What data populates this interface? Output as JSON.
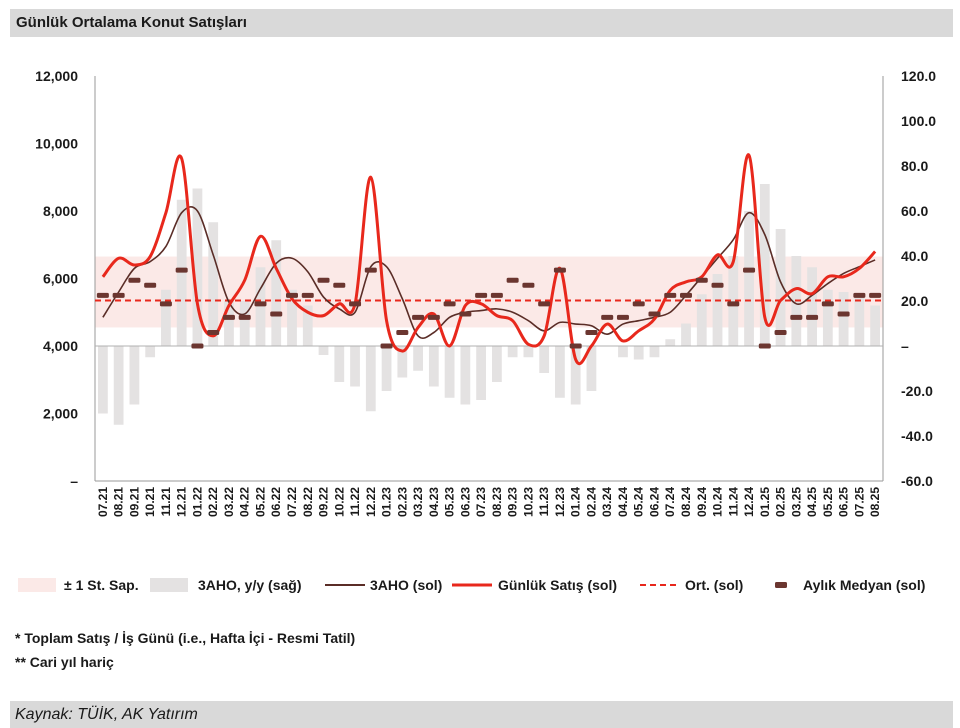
{
  "title": "Günlük Ortalama Konut Satışları",
  "notes": {
    "note1": "* Toplam Satış / İş Günü (i.e., Hafta İçi - Resmi Tatil)",
    "note2": "** Cari yıl hariç"
  },
  "source": "Kaynak: TÜİK, AK Yatırım",
  "colors": {
    "band": "#fbe9e7",
    "bars": "#e4e2e2",
    "aho": "#5a2d27",
    "daily": "#e8281c",
    "avg": "#e8281c",
    "median": "#6b3630"
  },
  "chart_data": {
    "type": "line",
    "x": [
      "07.21",
      "08.21",
      "09.21",
      "10.21",
      "11.21",
      "12.21",
      "01.22",
      "02.22",
      "03.22",
      "04.22",
      "05.22",
      "06.22",
      "07.22",
      "08.22",
      "09.22",
      "10.22",
      "11.22",
      "12.22",
      "01.23",
      "02.23",
      "03.23",
      "04.23",
      "05.23",
      "06.23",
      "07.23",
      "08.23",
      "09.23",
      "10.23",
      "11.23",
      "12.23",
      "01.24",
      "02.24",
      "03.24",
      "04.24",
      "05.24",
      "06.24",
      "07.24",
      "08.24",
      "09.24",
      "10.24",
      "11.24",
      "12.24",
      "01.25",
      "02.25",
      "03.25",
      "04.25",
      "05.25",
      "06.25",
      "07.25",
      "08.25"
    ],
    "y_left": {
      "min": 0,
      "max": 12000,
      "ticks": [
        "–",
        "2,000",
        "4,000",
        "6,000",
        "8,000",
        "10,000",
        "12,000"
      ]
    },
    "y_right": {
      "min": -60,
      "max": 120,
      "ticks": [
        "-60.0",
        "-40.0",
        "-20.0",
        "–",
        "20.0",
        "40.0",
        "60.0",
        "80.0",
        "100.0",
        "120.0"
      ]
    },
    "band": {
      "lower": 4550,
      "upper": 6650
    },
    "average": 5350,
    "series": [
      {
        "name": "3AHO, y/y (sağ)",
        "type": "bar",
        "axis": "right",
        "values": [
          -30,
          -35,
          -26,
          -5,
          25,
          65,
          70,
          55,
          20,
          20,
          35,
          47,
          25,
          18,
          -4,
          -16,
          -18,
          -29,
          -20,
          -14,
          -11,
          -18,
          -23,
          -26,
          -24,
          -16,
          -5,
          -5,
          -12,
          -23,
          -26,
          -20,
          0,
          -5,
          -6,
          -5,
          3,
          10,
          23,
          32,
          40,
          60,
          72,
          52,
          40,
          35,
          25,
          24,
          23,
          18
        ]
      },
      {
        "name": "3AHO (sol)",
        "type": "line",
        "axis": "left",
        "values": [
          4850,
          5600,
          6300,
          6500,
          6950,
          7950,
          8000,
          6700,
          5300,
          4950,
          5700,
          6450,
          6600,
          6200,
          5450,
          5100,
          5000,
          6350,
          6350,
          5400,
          4300,
          4400,
          4850,
          5000,
          5050,
          5100,
          5000,
          4750,
          4450,
          4700,
          4650,
          4600,
          4350,
          4650,
          4750,
          4850,
          5000,
          5500,
          6050,
          6600,
          7150,
          7950,
          7300,
          5900,
          5250,
          5500,
          5850,
          6150,
          6350,
          6550
        ]
      },
      {
        "name": "Günlük Satış (sol)",
        "type": "line",
        "axis": "left",
        "values": [
          6050,
          6600,
          6400,
          6650,
          7950,
          9550,
          5250,
          4300,
          5200,
          5950,
          7250,
          6300,
          5400,
          5000,
          4900,
          5250,
          5250,
          9000,
          4750,
          3850,
          4550,
          4950,
          4000,
          5200,
          5250,
          4900,
          4750,
          4050,
          4300,
          6300,
          3600,
          4000,
          4650,
          4150,
          4450,
          4800,
          5650,
          5900,
          6050,
          6700,
          6500,
          9650,
          4850,
          5350,
          5700,
          5550,
          6050,
          6050,
          6300,
          6800
        ]
      },
      {
        "name": "Aylık Medyan (sol)",
        "type": "marker",
        "axis": "left",
        "values": [
          5500,
          5500,
          5950,
          5800,
          5250,
          6250,
          4000,
          4400,
          4850,
          4850,
          5250,
          4950,
          5500,
          5500,
          5950,
          5800,
          5250,
          6250,
          4000,
          4400,
          4850,
          4850,
          5250,
          4950,
          5500,
          5500,
          5950,
          5800,
          5250,
          6250,
          4000,
          4400,
          4850,
          4850,
          5250,
          4950,
          5500,
          5500,
          5950,
          5800,
          5250,
          6250,
          4000,
          4400,
          4850,
          4850,
          5250,
          4950,
          5500,
          5500
        ]
      }
    ],
    "legend": {
      "placement": "bottom",
      "items": [
        "± 1 St. Sap.",
        "3AHO, y/y (sağ)",
        "3AHO (sol)",
        "Günlük Satış (sol)",
        "Ort. (sol)",
        "Aylık Medyan (sol)"
      ]
    }
  }
}
